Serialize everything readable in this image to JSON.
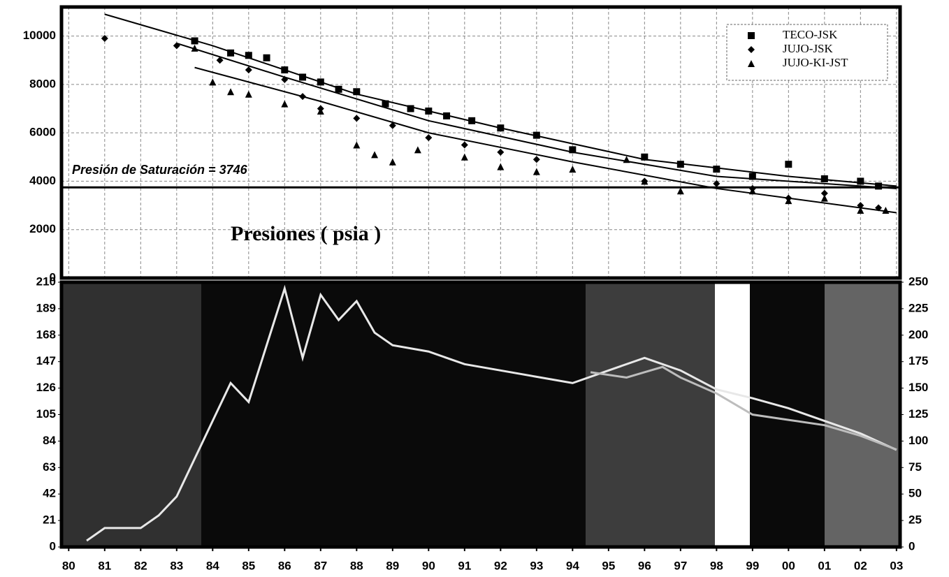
{
  "chart_data": [
    {
      "type": "scatter",
      "xlim": [
        79.8,
        103.1
      ],
      "ylim": [
        0,
        11200
      ],
      "yticks": [
        0,
        2000,
        4000,
        6000,
        8000,
        10000
      ],
      "grid": true,
      "legend": "top-right",
      "annotation": "Presiones ( psia )",
      "reference_line": {
        "label": "Presión de Saturación = 3746",
        "value": 3746
      },
      "series": [
        {
          "name": "TECO-JSK",
          "marker": "square",
          "color": "#000000",
          "x": [
            83.5,
            84.5,
            85,
            85.5,
            86,
            86.5,
            87,
            87.5,
            88,
            88.8,
            89.5,
            90,
            90.5,
            91.2,
            92,
            93,
            94,
            96,
            97,
            98,
            99,
            100,
            101,
            102,
            102.5
          ],
          "values": [
            9800,
            9300,
            9200,
            9100,
            8600,
            8300,
            8100,
            7800,
            7700,
            7200,
            7000,
            6900,
            6700,
            6500,
            6200,
            5900,
            5300,
            5000,
            4700,
            4500,
            4200,
            4700,
            4100,
            4000,
            3800
          ]
        },
        {
          "name": "JUJO-JSK",
          "marker": "diamond",
          "color": "#000000",
          "x": [
            81,
            83,
            84.2,
            85,
            86,
            86.5,
            87,
            88,
            89,
            90,
            91,
            92,
            93,
            96,
            98,
            99,
            100,
            101,
            102,
            102.5
          ],
          "values": [
            9900,
            9600,
            9000,
            8600,
            8200,
            7500,
            7000,
            6600,
            6300,
            5800,
            5500,
            5200,
            4900,
            4000,
            3900,
            3700,
            3300,
            3500,
            3000,
            2900
          ]
        },
        {
          "name": "JUJO-KI-JST",
          "marker": "triangle",
          "color": "#000000",
          "x": [
            83.5,
            84,
            84.5,
            85,
            86,
            87,
            88,
            88.5,
            89,
            89.7,
            91,
            92,
            93,
            94,
            95.5,
            96,
            97,
            99,
            100,
            101,
            102,
            102.7
          ],
          "values": [
            9500,
            8100,
            7700,
            7600,
            7200,
            6900,
            5500,
            5100,
            4800,
            5300,
            5000,
            4600,
            4400,
            4500,
            4900,
            4000,
            3600,
            3600,
            3200,
            3300,
            2800,
            2800
          ]
        },
        {
          "type": "line",
          "color": "#000000",
          "x": [
            81,
            84,
            88,
            92,
            96,
            100,
            103
          ],
          "values": [
            10900,
            9600,
            7600,
            6200,
            4900,
            4200,
            3800
          ]
        },
        {
          "type": "line",
          "color": "#000000",
          "x": [
            83,
            86,
            90,
            94,
            98,
            103
          ],
          "values": [
            9700,
            8300,
            6500,
            5200,
            4200,
            3700
          ]
        },
        {
          "type": "line",
          "color": "#000000",
          "x": [
            83.5,
            87,
            90,
            94,
            98,
            103
          ],
          "values": [
            8700,
            7300,
            6000,
            4800,
            3700,
            2700
          ]
        }
      ]
    },
    {
      "type": "line",
      "xlim": [
        79.8,
        103.1
      ],
      "xticks": [
        80,
        81,
        82,
        83,
        84,
        85,
        86,
        87,
        88,
        89,
        90,
        91,
        92,
        93,
        94,
        95,
        96,
        97,
        98,
        99,
        {
          "value": 100,
          "label": "00"
        },
        {
          "value": 101,
          "label": "01"
        },
        {
          "value": 102,
          "label": "02"
        },
        {
          "value": 103,
          "label": "03"
        }
      ],
      "ylim": [
        0,
        210
      ],
      "yticks": [
        0,
        21,
        42,
        63,
        84,
        105,
        126,
        147,
        168,
        189,
        210
      ],
      "y2lim": [
        0,
        250
      ],
      "y2ticks": [
        0,
        25,
        50,
        75,
        100,
        125,
        150,
        175,
        200,
        225,
        250
      ],
      "series": [
        {
          "color": "#e8e8e8",
          "x": [
            80.5,
            81,
            82,
            82.5,
            83,
            83.5,
            84,
            84.5,
            85,
            85.5,
            86,
            86.5,
            87,
            87.5,
            88,
            88.5,
            89,
            90,
            91,
            92,
            93,
            94,
            95,
            96,
            97,
            98,
            99,
            100,
            101,
            102,
            103
          ],
          "values": [
            5,
            15,
            15,
            25,
            40,
            70,
            100,
            130,
            115,
            160,
            205,
            150,
            200,
            180,
            195,
            170,
            160,
            155,
            145,
            140,
            135,
            130,
            140,
            150,
            140,
            125,
            118,
            110,
            100,
            90,
            77
          ]
        },
        {
          "color": "#bdbdbd",
          "axis": "y2",
          "x": [
            94.5,
            95.5,
            96,
            96.5,
            97,
            98,
            99,
            100,
            101,
            102,
            103
          ],
          "values": [
            165,
            160,
            165,
            170,
            160,
            145,
            125,
            120,
            115,
            105,
            92
          ]
        }
      ]
    }
  ]
}
